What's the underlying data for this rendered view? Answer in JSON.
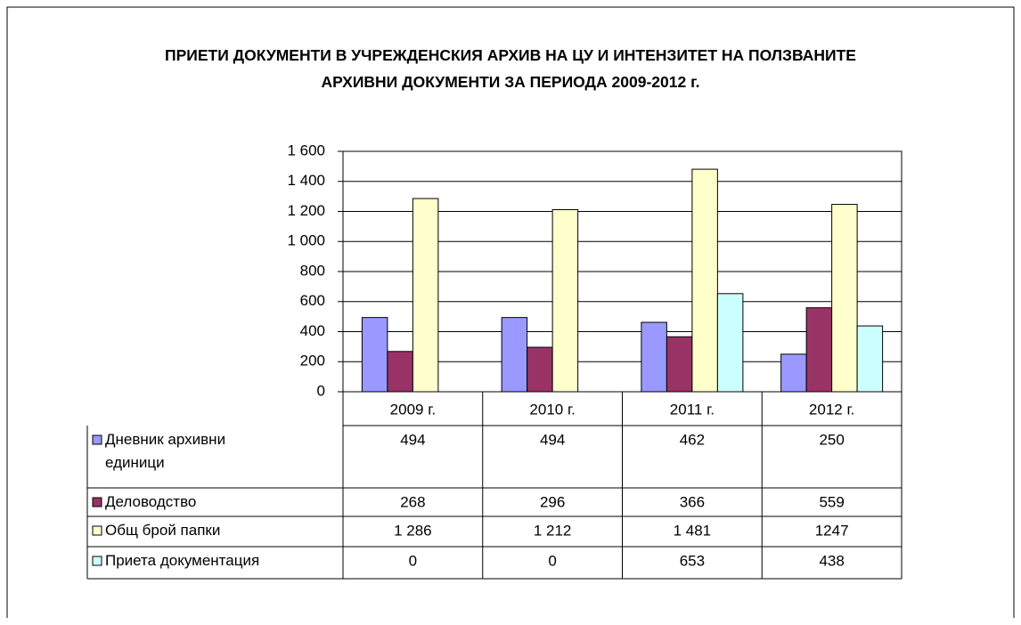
{
  "chart_data": {
    "type": "bar",
    "title": "ПРИЕТИ ДОКУМЕНТИ В УЧРЕЖДЕНСКИЯ АРХИВ НА ЦУ И ИНТЕНЗИТЕТ НА ПОЛЗВАНИТЕ АРХИВНИ ДОКУМЕНТИ ЗА ПЕРИОДА 2009-2012 г.",
    "categories": [
      "2009 г.",
      "2010 г.",
      "2011 г.",
      "2012 г."
    ],
    "series": [
      {
        "name": "Дневник архивни единици",
        "color": "#9999ff",
        "values": [
          494,
          494,
          462,
          250
        ],
        "value_labels": [
          "494",
          "494",
          "462",
          "250"
        ]
      },
      {
        "name": "Деловодство",
        "color": "#993366",
        "values": [
          268,
          296,
          366,
          559
        ],
        "value_labels": [
          "268",
          "296",
          "366",
          "559"
        ]
      },
      {
        "name": "Общ брой папки",
        "color": "#ffffcc",
        "values": [
          1286,
          1212,
          1481,
          1247
        ],
        "value_labels": [
          "1 286",
          "1 212",
          "1 481",
          "1247"
        ]
      },
      {
        "name": "Приета документация",
        "color": "#ccffff",
        "values": [
          0,
          0,
          653,
          438
        ],
        "value_labels": [
          "0",
          "0",
          "653",
          "438"
        ]
      }
    ],
    "ylim": [
      0,
      1600
    ],
    "yticks": [
      0,
      200,
      400,
      600,
      800,
      {
        "value": 1000,
        "label": "1 000"
      },
      {
        "value": 1200,
        "label": "1 200"
      },
      {
        "value": 1400,
        "label": "1 400"
      },
      {
        "value": 1600,
        "label": "1 600"
      }
    ],
    "grid": true,
    "legend": "table"
  }
}
